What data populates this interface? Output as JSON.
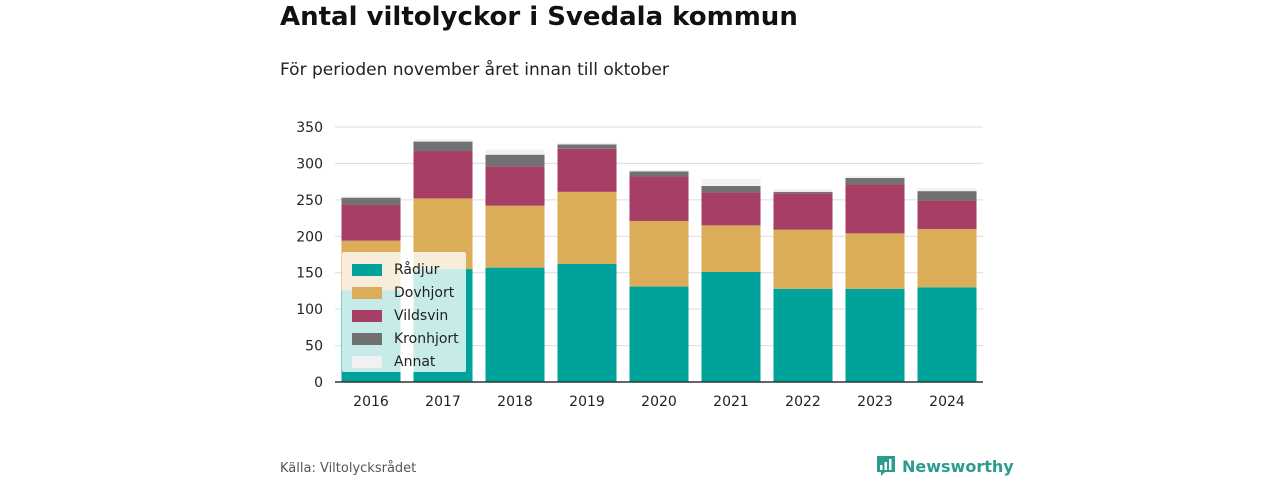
{
  "page": {
    "title": "Antal viltolyckor i Svedala kommun",
    "subtitle": "För perioden november året innan till oktober",
    "source": "Källa: Viltolycksrådet",
    "brand": "Newsworthy"
  },
  "colors": {
    "Rådjur": "#00a399",
    "Dovhjort": "#dcad58",
    "Vildsvin": "#a63e66",
    "Kronhjort": "#717171",
    "Annat": "#f1f1f1",
    "brand": "#2a9d8f"
  },
  "chart_data": {
    "type": "bar",
    "stacked": true,
    "categories": [
      "2016",
      "2017",
      "2018",
      "2019",
      "2020",
      "2021",
      "2022",
      "2023",
      "2024"
    ],
    "series": [
      {
        "name": "Rådjur",
        "values": [
          126,
          155,
          157,
          162,
          131,
          151,
          128,
          128,
          130
        ]
      },
      {
        "name": "Dovhjort",
        "values": [
          68,
          97,
          85,
          99,
          90,
          64,
          81,
          76,
          80
        ]
      },
      {
        "name": "Vildsvin",
        "values": [
          49,
          65,
          54,
          59,
          61,
          45,
          50,
          67,
          39
        ]
      },
      {
        "name": "Kronhjort",
        "values": [
          10,
          13,
          16,
          6,
          7,
          9,
          2,
          9,
          13
        ]
      },
      {
        "name": "Annat",
        "values": [
          2,
          3,
          7,
          2,
          2,
          10,
          4,
          3,
          4
        ]
      }
    ],
    "ylim": [
      0,
      350
    ],
    "yticks": [
      0,
      50,
      100,
      150,
      200,
      250,
      300,
      350
    ],
    "grid": true,
    "legend": "bottom-left"
  }
}
